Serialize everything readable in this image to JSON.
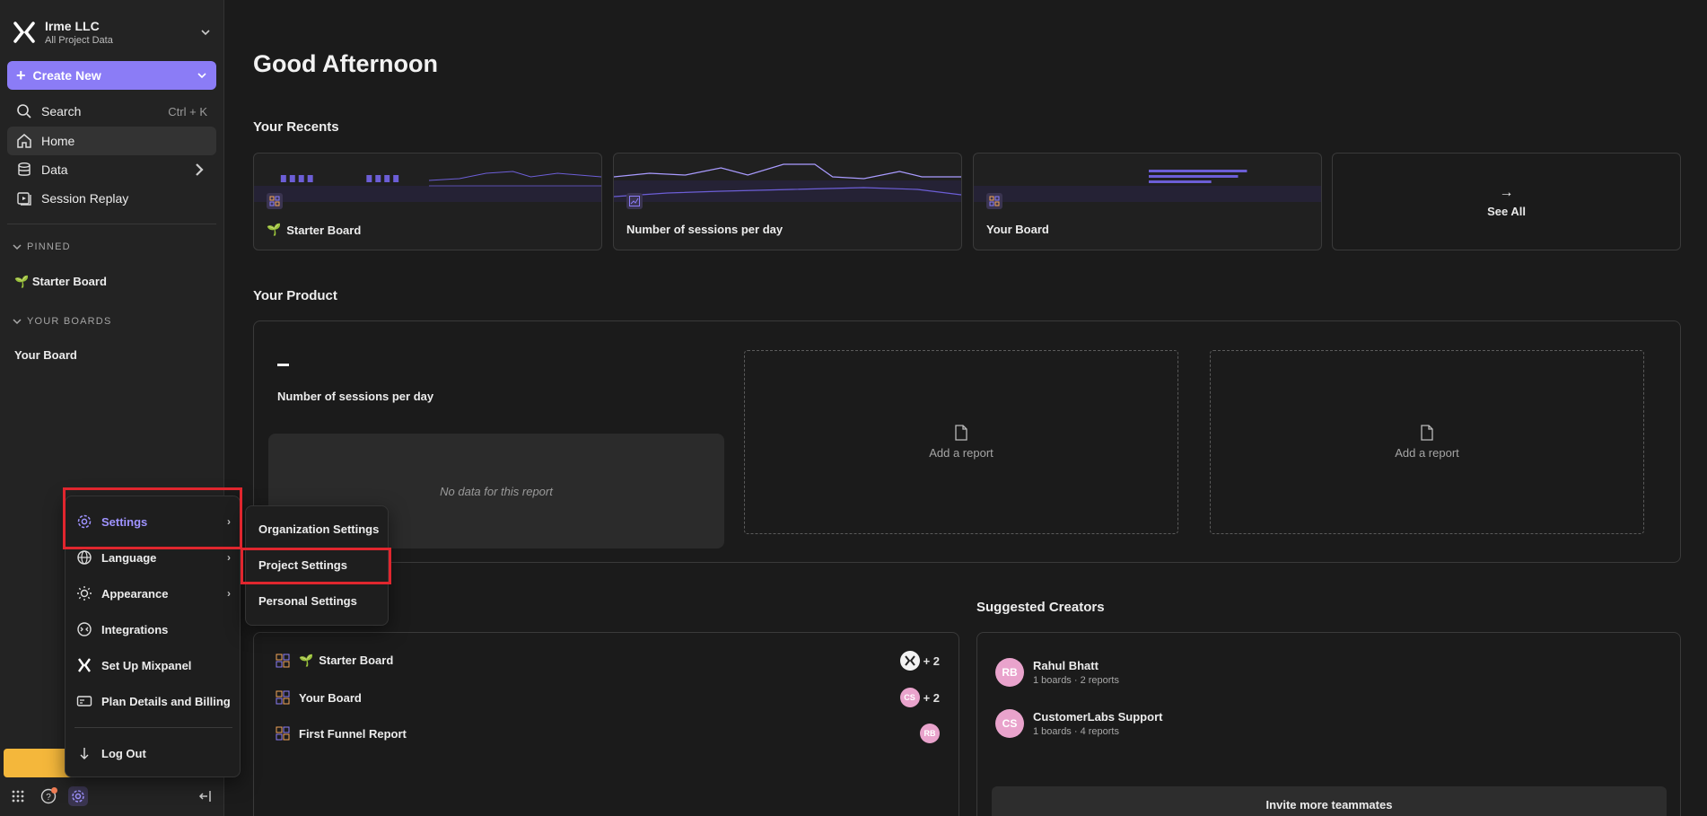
{
  "sidebar": {
    "org_name": "Irme LLC",
    "org_sub": "All Project Data",
    "create_label": "Create New",
    "nav": [
      {
        "label": "Search",
        "hint": "Ctrl + K"
      },
      {
        "label": "Home"
      },
      {
        "label": "Data"
      },
      {
        "label": "Session Replay"
      }
    ],
    "pinned_header": "PINNED",
    "pinned_item": "Starter Board",
    "boards_header": "YOUR BOARDS",
    "boards_item": "Your Board"
  },
  "main": {
    "greeting": "Good Afternoon",
    "recents_title": "Your Recents",
    "recents": [
      {
        "label": "Starter Board"
      },
      {
        "label": "Number of sessions per day"
      },
      {
        "label": "Your Board"
      }
    ],
    "see_all": "See All",
    "product_title": "Your Product",
    "kpi_label": "Number of sessions per day",
    "no_data": "No data for this report",
    "add_report": "Add a report",
    "boards": [
      {
        "label": "Starter Board",
        "avatar": "",
        "plus": "+ 2"
      },
      {
        "label": "Your Board",
        "avatar": "CS",
        "plus": "+ 2"
      },
      {
        "label": "First Funnel Report",
        "avatar": "RB",
        "plus": ""
      }
    ],
    "creators_title": "Suggested Creators",
    "creators": [
      {
        "initials": "RB",
        "name": "Rahul Bhatt",
        "meta": "1 boards · 2 reports"
      },
      {
        "initials": "CS",
        "name": "CustomerLabs Support",
        "meta": "1 boards · 4 reports"
      }
    ],
    "invite": "Invite more teammates"
  },
  "menu": {
    "items": [
      {
        "label": "Settings",
        "icon": "gear-icon"
      },
      {
        "label": "Language",
        "icon": "globe-icon"
      },
      {
        "label": "Appearance",
        "icon": "sun-icon"
      },
      {
        "label": "Integrations",
        "icon": "integrations-icon"
      },
      {
        "label": "Set Up Mixpanel",
        "icon": "mixpanel-icon"
      },
      {
        "label": "Plan Details and Billing",
        "icon": "billing-icon"
      },
      {
        "label": "Log Out",
        "icon": "arrow-down-icon"
      }
    ],
    "submenu": [
      "Organization Settings",
      "Project Settings",
      "Personal Settings"
    ]
  },
  "colors": {
    "accent": "#8b7cf6",
    "highlight": "#e0262e",
    "upgrade": "#f4b73b"
  }
}
